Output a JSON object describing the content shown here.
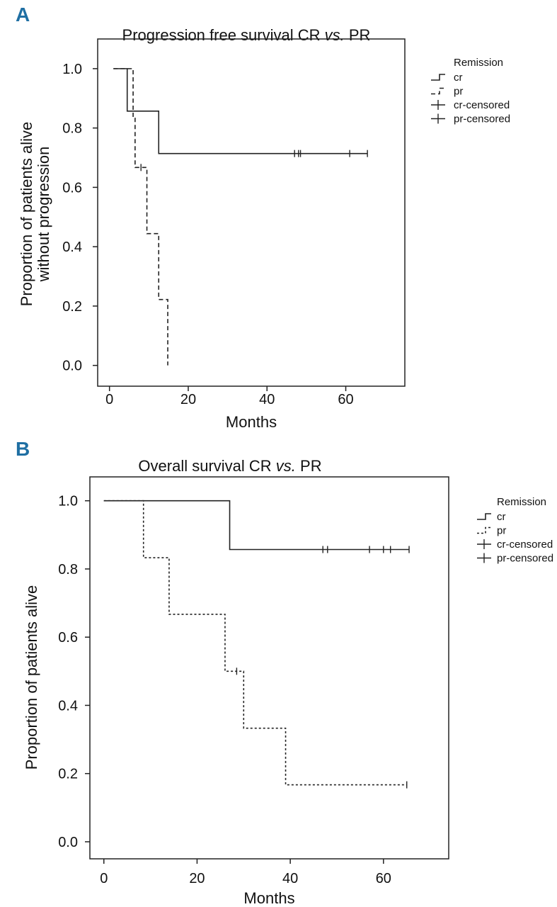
{
  "chart_data": [
    {
      "panel": "A",
      "type": "line",
      "title": "Progression free survival CR vs. PR",
      "title_parts": [
        "Progression free survival CR ",
        "vs.",
        " PR"
      ],
      "xlabel": "Months",
      "ylabel": "Proportion of patients alive without progression",
      "ylabel_lines": [
        "Proportion of patients alive",
        "without progression"
      ],
      "xlim": [
        -3,
        75
      ],
      "ylim": [
        -0.07,
        1.1
      ],
      "xticks": [
        0,
        20,
        40,
        60
      ],
      "yticks": [
        0.0,
        0.2,
        0.4,
        0.6,
        0.8,
        1.0
      ],
      "ytick_labels": [
        "0.0",
        "0.2",
        "0.4",
        "0.6",
        "0.8",
        "1.0"
      ],
      "legend": {
        "title": "Remission",
        "entries": [
          "cr",
          "pr",
          "cr-censored",
          "pr-censored"
        ],
        "position": "right"
      },
      "series": [
        {
          "name": "cr",
          "style": "solid",
          "steps": [
            [
              1,
              1.0
            ],
            [
              4.5,
              0.857
            ],
            [
              12.5,
              0.714
            ],
            [
              65.5,
              0.714
            ]
          ],
          "censored": [
            47,
            48,
            48.5,
            61,
            65.5
          ]
        },
        {
          "name": "pr",
          "style": "dashed",
          "steps": [
            [
              1,
              1.0
            ],
            [
              6,
              0.833
            ],
            [
              6.5,
              0.667
            ],
            [
              9.5,
              0.444
            ],
            [
              12.5,
              0.222
            ],
            [
              14.8,
              0.0
            ]
          ],
          "censored": [
            8
          ]
        }
      ]
    },
    {
      "panel": "B",
      "type": "line",
      "title": "Overall survival CR vs. PR",
      "title_parts": [
        "Overall survival CR ",
        "vs.",
        " PR"
      ],
      "xlabel": "Months",
      "ylabel": "Proportion of patients alive",
      "ylabel_lines": [
        "Proportion of patients alive"
      ],
      "xlim": [
        -3,
        74
      ],
      "ylim": [
        -0.05,
        1.07
      ],
      "xticks": [
        0,
        20,
        40,
        60
      ],
      "yticks": [
        0.0,
        0.2,
        0.4,
        0.6,
        0.8,
        1.0
      ],
      "ytick_labels": [
        "0.0",
        "0.2",
        "0.4",
        "0.6",
        "0.8",
        "1.0"
      ],
      "legend": {
        "title": "Remission",
        "entries": [
          "cr",
          "pr",
          "cr-censored",
          "pr-censored"
        ],
        "position": "right"
      },
      "series": [
        {
          "name": "cr",
          "style": "solid",
          "steps": [
            [
              0,
              1.0
            ],
            [
              27,
              0.857
            ],
            [
              65.5,
              0.857
            ]
          ],
          "censored": [
            47,
            48,
            57,
            60,
            61.5,
            65.5
          ]
        },
        {
          "name": "pr",
          "style": "dotted",
          "steps": [
            [
              0,
              1.0
            ],
            [
              8.5,
              0.833
            ],
            [
              14,
              0.667
            ],
            [
              26,
              0.5
            ],
            [
              30,
              0.333
            ],
            [
              39,
              0.167
            ],
            [
              65,
              0.167
            ]
          ],
          "censored": [
            28.5,
            65
          ]
        }
      ]
    }
  ]
}
